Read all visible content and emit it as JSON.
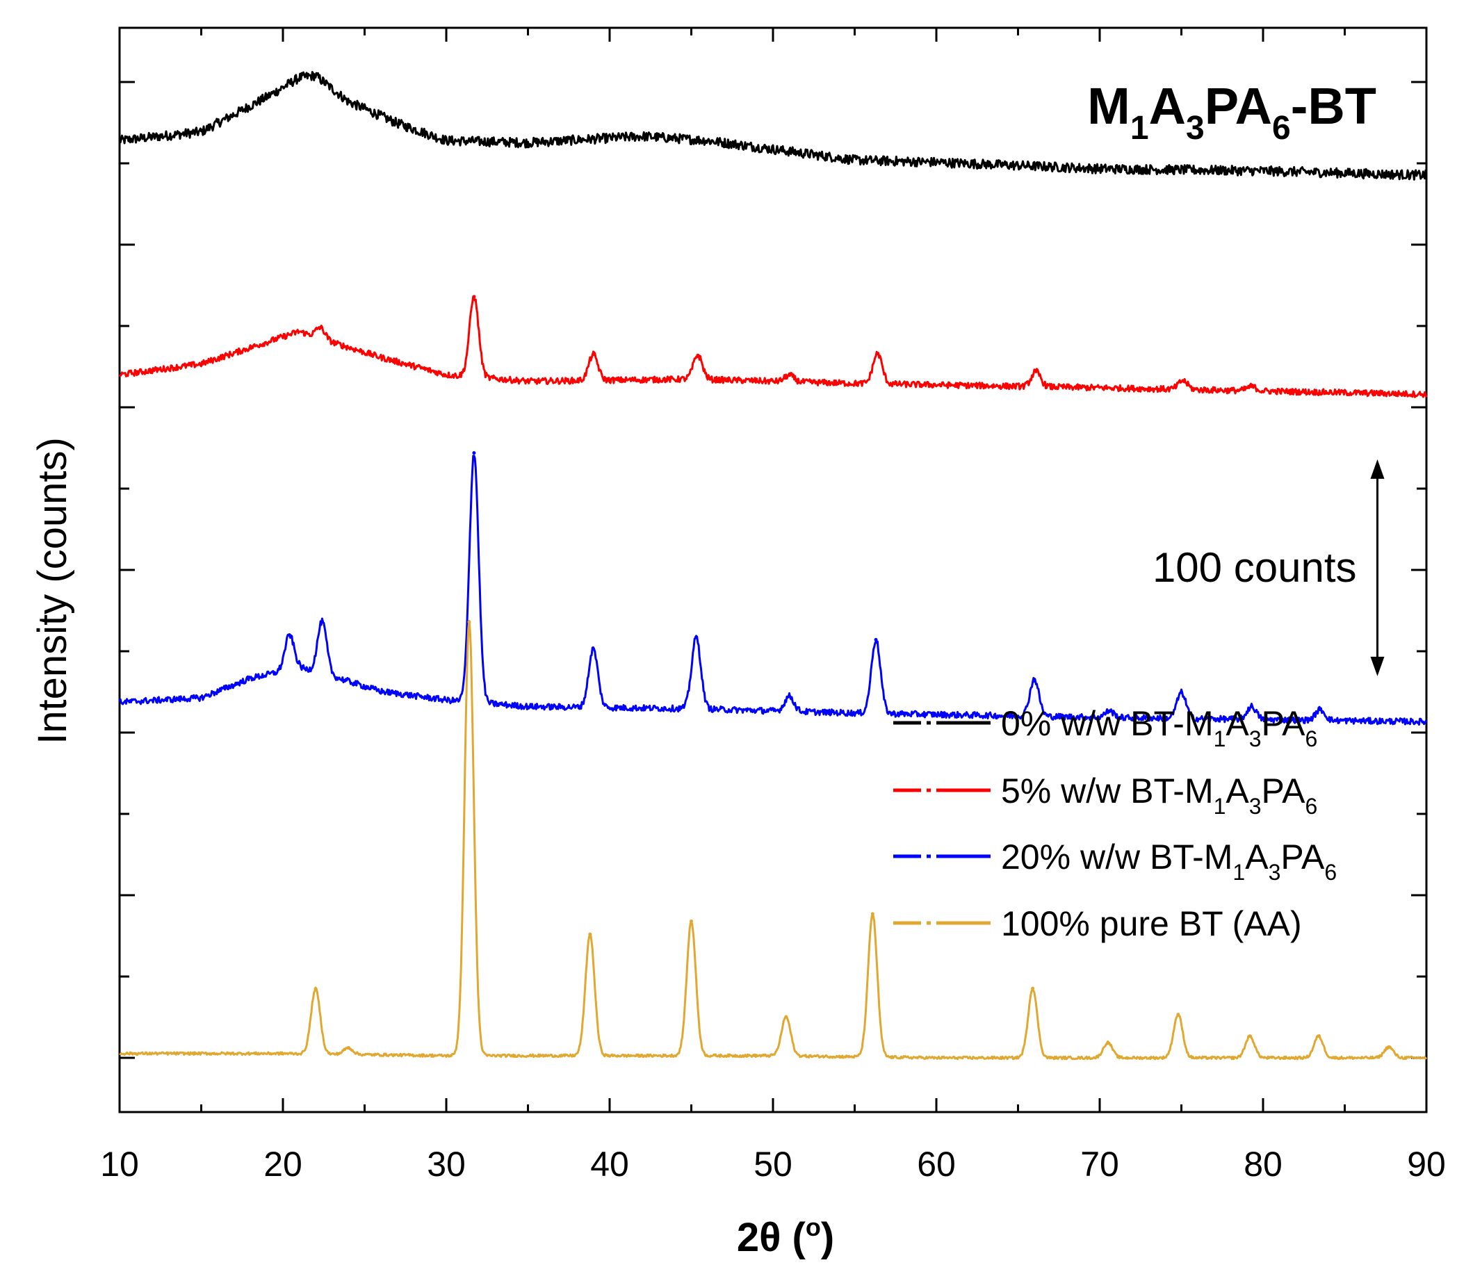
{
  "chart_data": {
    "type": "line",
    "title": {
      "main": "M",
      "sub1": "1",
      "mid1": "A",
      "sub2": "3",
      "mid2": "PA",
      "sub3": "6",
      "tail": "-BT"
    },
    "xlabel": {
      "main": "2θ (",
      "sup": "o",
      "tail": ")"
    },
    "ylabel": "Intensity (counts)",
    "xlim": [
      10,
      90
    ],
    "xticks": [
      10,
      20,
      30,
      40,
      50,
      60,
      70,
      80,
      90
    ],
    "y_tick_count": 13,
    "ylim_counts": [
      -25,
      475
    ],
    "scale_bar": {
      "label": "100 counts",
      "counts": 100,
      "x": 87
    },
    "series": [
      {
        "name": "0% w/w BT-M1A3PA6",
        "label": {
          "main": "0% w/w BT-M",
          "sub1": "1",
          "mid1": "A",
          "sub2": "3",
          "mid2": "PA",
          "sub3": "6"
        },
        "color": "#000000",
        "offset": 270,
        "baseline": [
          [
            10,
            423
          ],
          [
            15,
            427
          ],
          [
            19,
            443
          ],
          [
            21,
            452
          ],
          [
            22,
            453
          ],
          [
            24,
            441
          ],
          [
            27,
            431
          ],
          [
            30,
            423
          ],
          [
            35,
            422
          ],
          [
            42,
            425
          ],
          [
            46,
            423
          ],
          [
            50,
            419
          ],
          [
            55,
            414
          ],
          [
            60,
            413
          ],
          [
            70,
            410
          ],
          [
            80,
            409
          ],
          [
            90,
            407
          ]
        ],
        "peaks": []
      },
      {
        "name": "5% w/w BT-M1A3PA6",
        "label": {
          "main": "5% w/w BT-M",
          "sub1": "1",
          "mid1": "A",
          "sub2": "3",
          "mid2": "PA",
          "sub3": "6"
        },
        "color": "#ff0000",
        "offset": 195,
        "baseline": [
          [
            10,
            315
          ],
          [
            15,
            320
          ],
          [
            19,
            330
          ],
          [
            21,
            335
          ],
          [
            23,
            330
          ],
          [
            26,
            323
          ],
          [
            30,
            315
          ],
          [
            35,
            312
          ],
          [
            45,
            313
          ],
          [
            55,
            311
          ],
          [
            70,
            309
          ],
          [
            90,
            306
          ]
        ],
        "peaks": [
          [
            22.3,
            5
          ],
          [
            31.7,
            37
          ],
          [
            39.0,
            12
          ],
          [
            45.4,
            11
          ],
          [
            51.0,
            3
          ],
          [
            56.4,
            14
          ],
          [
            66.1,
            7
          ],
          [
            75.1,
            4
          ],
          [
            79.3,
            2
          ]
        ]
      },
      {
        "name": "20% w/w BT-M1A3PA6",
        "label": {
          "main": "20% w/w BT-M",
          "sub1": "1",
          "mid1": "A",
          "sub2": "3",
          "mid2": "PA",
          "sub3": "6"
        },
        "color": "#0000ff",
        "offset": 120,
        "baseline": [
          [
            10,
            164
          ],
          [
            15,
            166
          ],
          [
            18,
            175
          ],
          [
            21,
            180
          ],
          [
            23,
            176
          ],
          [
            26,
            169
          ],
          [
            30,
            165
          ],
          [
            35,
            162
          ],
          [
            45,
            161
          ],
          [
            55,
            159
          ],
          [
            70,
            157
          ],
          [
            90,
            155
          ]
        ],
        "peaks": [
          [
            20.4,
            16
          ],
          [
            22.4,
            24
          ],
          [
            31.7,
            115
          ],
          [
            39.0,
            27
          ],
          [
            45.3,
            33
          ],
          [
            51.0,
            7
          ],
          [
            56.3,
            34
          ],
          [
            66.0,
            17
          ],
          [
            70.6,
            3
          ],
          [
            75.0,
            12
          ],
          [
            79.3,
            6
          ],
          [
            83.5,
            5
          ]
        ]
      },
      {
        "name": "100% pure BT (AA)",
        "label": {
          "main": "100% pure BT (AA)"
        },
        "color": "#e0a830",
        "offset": 0,
        "baseline": [
          [
            10,
            2
          ],
          [
            20,
            2
          ],
          [
            30,
            1
          ],
          [
            40,
            1
          ],
          [
            50,
            1
          ],
          [
            60,
            0
          ],
          [
            70,
            0
          ],
          [
            80,
            0
          ],
          [
            90,
            0
          ]
        ],
        "peaks": [
          [
            22.0,
            30
          ],
          [
            24.0,
            3
          ],
          [
            31.4,
            200
          ],
          [
            38.8,
            56
          ],
          [
            45.0,
            62
          ],
          [
            50.8,
            18
          ],
          [
            56.1,
            66
          ],
          [
            65.9,
            32
          ],
          [
            70.5,
            7
          ],
          [
            74.8,
            20
          ],
          [
            79.2,
            10
          ],
          [
            83.4,
            10
          ],
          [
            87.7,
            5
          ]
        ]
      }
    ],
    "legend_position": "middle-right"
  }
}
